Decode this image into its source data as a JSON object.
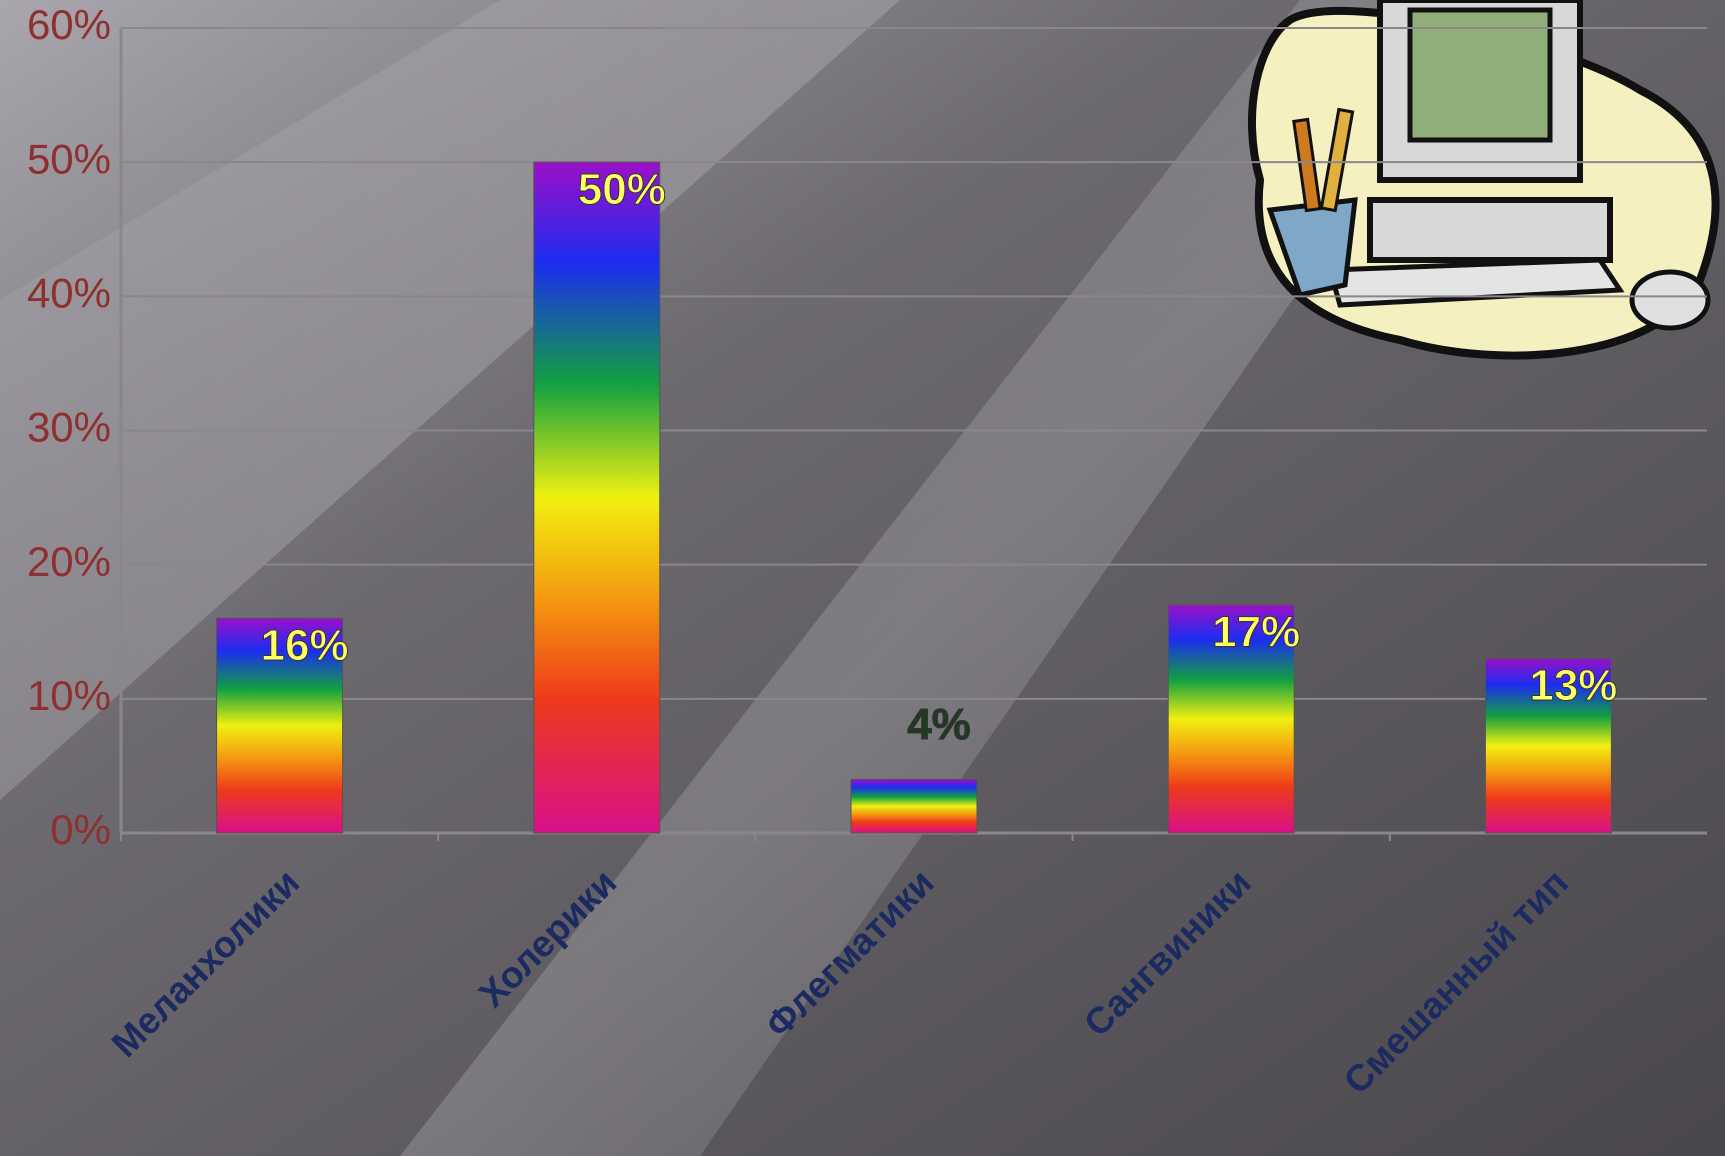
{
  "chart_data": {
    "type": "bar",
    "categories": [
      "Меланхолики",
      "Холерики",
      "Флегматики",
      "Сангвиники",
      "Смешанный тип"
    ],
    "values": [
      16,
      50,
      4,
      17,
      13
    ],
    "value_labels": [
      "16%",
      "50%",
      "4%",
      "17%",
      "13%"
    ],
    "value_label_colors": [
      "#ffff66",
      "#ffff66",
      "#1f3a1f",
      "#ffff66",
      "#ffff66"
    ],
    "ylim": [
      0,
      60
    ],
    "yticks": [
      {
        "value": 0,
        "label": "0%"
      },
      {
        "value": 10,
        "label": "10%"
      },
      {
        "value": 20,
        "label": "20%"
      },
      {
        "value": 30,
        "label": "30%"
      },
      {
        "value": 40,
        "label": "40%"
      },
      {
        "value": 50,
        "label": "50%"
      },
      {
        "value": 60,
        "label": "60%"
      }
    ],
    "grid": true
  }
}
